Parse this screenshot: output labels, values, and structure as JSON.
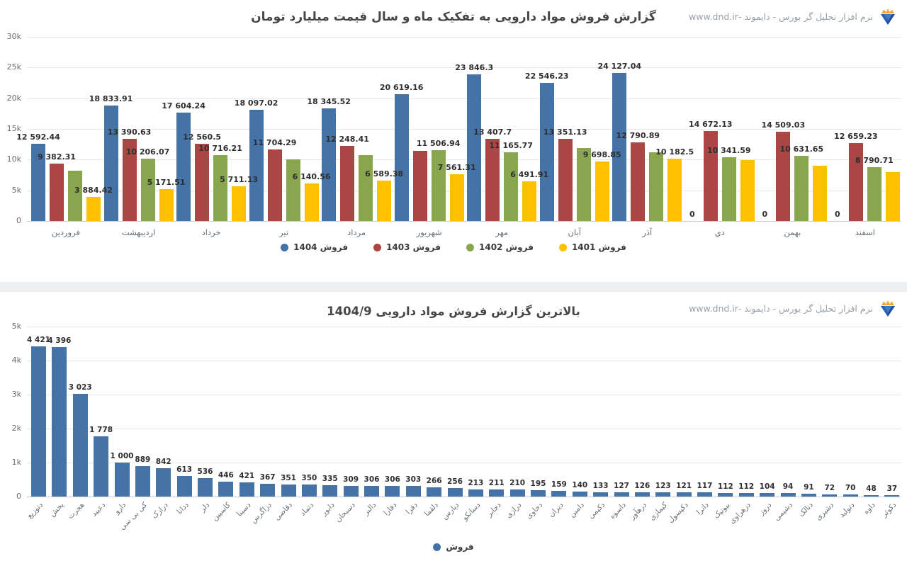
{
  "brand": {
    "text": "نرم افزار تحلیل گر بورس - دایموند -www.dnd.ir",
    "logo": "diamond-with-crown"
  },
  "chart_data": [
    {
      "type": "bar",
      "title": "گزارش فروش مواد دارویی به تفکیک ماه و سال قیمت میلیارد تومان",
      "ylim": [
        0,
        30000
      ],
      "y_ticks": [
        "30k",
        "25k",
        "20k",
        "15k",
        "10k",
        "5k",
        "0"
      ],
      "grid": true,
      "legend_position": "bottom",
      "categories": [
        "فروردین",
        "اردیبهشت",
        "خرداد",
        "تیر",
        "مرداد",
        "شهریور",
        "مهر",
        "آبان",
        "آذر",
        "دي",
        "بهمن",
        "اسفند"
      ],
      "series": [
        {
          "name": "فروش 1404",
          "color": "#4572A7",
          "values": [
            12592.44,
            18833.91,
            17604.24,
            18097.02,
            18345.52,
            20619.16,
            23846.3,
            22546.23,
            24127.04,
            0,
            0,
            0
          ],
          "labels": [
            "12 592.44",
            "18 833.91",
            "17 604.24",
            "18 097.02",
            "18 345.52",
            "20 619.16",
            "23 846.3",
            "22 546.23",
            "24 127.04",
            "0",
            "0",
            "0"
          ]
        },
        {
          "name": "فروش 1403",
          "color": "#AA4643",
          "values": [
            9382.31,
            13390.63,
            12560.5,
            11704.29,
            12248.41,
            11450,
            13407.7,
            13351.13,
            12790.89,
            14672.13,
            14509.03,
            12659.23
          ],
          "labels": [
            "9 382.31",
            "13 390.63",
            "12 560.5",
            "11 704.29",
            "12 248.41",
            "",
            "13 407.7",
            "13 351.13",
            "12 790.89",
            "14 672.13",
            "14 509.03",
            "12 659.23"
          ]
        },
        {
          "name": "فروش 1402",
          "color": "#89A54E",
          "values": [
            8140,
            10206.07,
            10716.21,
            10070,
            10700,
            11506.94,
            11165.77,
            11900,
            11200,
            10341.59,
            10631.65,
            8790.71
          ],
          "labels": [
            "",
            "10 206.07",
            "10 716.21",
            "",
            "",
            "11 506.94",
            "11 165.77",
            "",
            "",
            "10 341.59",
            "10 631.65",
            "8 790.71"
          ]
        },
        {
          "name": "فروش 1401",
          "color": "#FFC000",
          "values": [
            3884.42,
            5171.51,
            5711.13,
            6140.56,
            6589.38,
            7561.31,
            6491.91,
            9698.85,
            10182.5,
            9950,
            9030,
            7960
          ],
          "labels": [
            "3 884.42",
            "5 171.51",
            "5 711.13",
            "6 140.56",
            "6 589.38",
            "7 561.31",
            "6 491.91",
            "9 698.85",
            "10 182.5",
            "",
            "",
            ""
          ]
        }
      ]
    },
    {
      "type": "bar",
      "title": "بالاترین گزارش فروش مواد دارویی 1404/9",
      "ylim": [
        0,
        5000
      ],
      "y_ticks": [
        "5k",
        "4k",
        "3k",
        "2k",
        "1k",
        "0"
      ],
      "grid": true,
      "legend_position": "bottom",
      "categories": [
        "دتوزیع",
        "پخش",
        "هجرت",
        "دعبید",
        "دارو",
        "کی بی سی",
        "درازک",
        "ددانا",
        "دلر",
        "کاسپین",
        "دسینا",
        "دزاگرس",
        "دقاضی",
        "دتماد",
        "دابور",
        "دسبحان",
        "دالبر",
        "دفارا",
        "دفرا",
        "دلقما",
        "دپارس",
        "دسانکو",
        "دجابر",
        "درازی",
        "دحاوی",
        "دیران",
        "دامین",
        "دکیمی",
        "داسوه",
        "درهآور",
        "کیمازی",
        "دکپسول",
        "داترا",
        "بیوتیک",
        "دزهراوی",
        "دروز",
        "دشیمی",
        "دبالک",
        "دشیری",
        "دتولید",
        "داوه",
        "دکوثر"
      ],
      "series": [
        {
          "name": "فروش",
          "color": "#4572A7",
          "values": [
            4421,
            4396,
            3023,
            1778,
            1000,
            889,
            842,
            613,
            536,
            446,
            421,
            367,
            351,
            350,
            335,
            309,
            306,
            306,
            303,
            266,
            256,
            213,
            211,
            210,
            195,
            159,
            140,
            133,
            127,
            126,
            123,
            121,
            117,
            112,
            112,
            104,
            94,
            91,
            72,
            70,
            48,
            37
          ],
          "labels": [
            "4 421",
            "4 396",
            "3 023",
            "1 778",
            "1 000",
            "889",
            "842",
            "613",
            "536",
            "446",
            "421",
            "367",
            "351",
            "350",
            "335",
            "309",
            "306",
            "306",
            "303",
            "266",
            "256",
            "213",
            "211",
            "210",
            "195",
            "159",
            "140",
            "133",
            "127",
            "126",
            "123",
            "121",
            "117",
            "112",
            "112",
            "104",
            "94",
            "91",
            "72",
            "70",
            "48",
            "37"
          ]
        }
      ]
    }
  ]
}
